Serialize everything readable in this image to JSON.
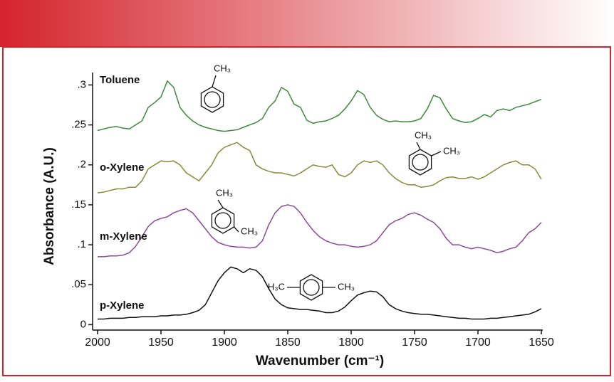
{
  "chart_data": {
    "type": "line",
    "xlabel": "Wavenumber (cm⁻¹)",
    "ylabel": "Absorbance (A.U.)",
    "x": [
      2000,
      1995,
      1990,
      1985,
      1980,
      1975,
      1970,
      1965,
      1960,
      1955,
      1950,
      1945,
      1940,
      1935,
      1930,
      1925,
      1920,
      1915,
      1910,
      1905,
      1900,
      1895,
      1890,
      1885,
      1880,
      1875,
      1870,
      1865,
      1860,
      1855,
      1850,
      1845,
      1840,
      1835,
      1830,
      1825,
      1820,
      1815,
      1810,
      1805,
      1800,
      1795,
      1790,
      1785,
      1780,
      1775,
      1770,
      1765,
      1760,
      1755,
      1750,
      1745,
      1740,
      1735,
      1730,
      1725,
      1720,
      1715,
      1710,
      1705,
      1700,
      1695,
      1690,
      1685,
      1680,
      1675,
      1670,
      1665,
      1660,
      1655,
      1650
    ],
    "series": [
      {
        "name": "Toluene",
        "color": "#3d8a3d",
        "structure": [
          "CH₃"
        ],
        "values": [
          0.243,
          0.245,
          0.247,
          0.248,
          0.246,
          0.245,
          0.25,
          0.255,
          0.272,
          0.278,
          0.285,
          0.305,
          0.297,
          0.272,
          0.262,
          0.255,
          0.25,
          0.247,
          0.245,
          0.243,
          0.242,
          0.243,
          0.244,
          0.247,
          0.25,
          0.253,
          0.258,
          0.272,
          0.28,
          0.297,
          0.292,
          0.276,
          0.272,
          0.256,
          0.252,
          0.254,
          0.255,
          0.258,
          0.262,
          0.27,
          0.28,
          0.293,
          0.288,
          0.272,
          0.262,
          0.257,
          0.254,
          0.255,
          0.254,
          0.254,
          0.255,
          0.258,
          0.27,
          0.287,
          0.284,
          0.27,
          0.258,
          0.255,
          0.253,
          0.254,
          0.258,
          0.263,
          0.26,
          0.268,
          0.27,
          0.268,
          0.272,
          0.274,
          0.276,
          0.279,
          0.282
        ]
      },
      {
        "name": "o-Xylene",
        "color": "#8a8a3a",
        "structure": [
          "CH₃",
          "CH₃"
        ],
        "values": [
          0.165,
          0.166,
          0.168,
          0.17,
          0.17,
          0.172,
          0.172,
          0.18,
          0.195,
          0.2,
          0.205,
          0.204,
          0.205,
          0.2,
          0.19,
          0.185,
          0.18,
          0.19,
          0.2,
          0.215,
          0.222,
          0.225,
          0.228,
          0.222,
          0.218,
          0.2,
          0.195,
          0.192,
          0.19,
          0.19,
          0.188,
          0.186,
          0.19,
          0.195,
          0.2,
          0.198,
          0.197,
          0.2,
          0.188,
          0.185,
          0.19,
          0.2,
          0.205,
          0.203,
          0.205,
          0.2,
          0.19,
          0.183,
          0.178,
          0.175,
          0.175,
          0.172,
          0.173,
          0.175,
          0.18,
          0.184,
          0.185,
          0.183,
          0.183,
          0.185,
          0.182,
          0.185,
          0.19,
          0.195,
          0.2,
          0.203,
          0.205,
          0.2,
          0.2,
          0.195,
          0.182
        ]
      },
      {
        "name": "m-Xylene",
        "color": "#8c4a9c",
        "structure": [
          "CH₃",
          "CH₃"
        ],
        "values": [
          0.085,
          0.085,
          0.086,
          0.086,
          0.087,
          0.09,
          0.098,
          0.11,
          0.123,
          0.13,
          0.133,
          0.135,
          0.14,
          0.143,
          0.145,
          0.14,
          0.13,
          0.12,
          0.11,
          0.103,
          0.1,
          0.098,
          0.097,
          0.097,
          0.096,
          0.097,
          0.105,
          0.125,
          0.14,
          0.148,
          0.15,
          0.148,
          0.14,
          0.128,
          0.118,
          0.11,
          0.105,
          0.102,
          0.1,
          0.1,
          0.098,
          0.097,
          0.098,
          0.1,
          0.105,
          0.115,
          0.125,
          0.13,
          0.133,
          0.138,
          0.14,
          0.137,
          0.132,
          0.128,
          0.12,
          0.108,
          0.1,
          0.1,
          0.097,
          0.095,
          0.097,
          0.095,
          0.093,
          0.09,
          0.092,
          0.095,
          0.097,
          0.105,
          0.115,
          0.12,
          0.128
        ]
      },
      {
        "name": "p-Xylene",
        "color": "#111111",
        "structure": [
          "H₃C",
          "CH₃"
        ],
        "values": [
          0.007,
          0.007,
          0.008,
          0.008,
          0.008,
          0.009,
          0.009,
          0.01,
          0.01,
          0.01,
          0.011,
          0.011,
          0.012,
          0.012,
          0.013,
          0.015,
          0.018,
          0.025,
          0.04,
          0.055,
          0.065,
          0.072,
          0.07,
          0.065,
          0.07,
          0.068,
          0.06,
          0.045,
          0.032,
          0.025,
          0.021,
          0.02,
          0.019,
          0.019,
          0.018,
          0.017,
          0.015,
          0.015,
          0.017,
          0.022,
          0.03,
          0.037,
          0.04,
          0.042,
          0.041,
          0.035,
          0.025,
          0.02,
          0.017,
          0.015,
          0.014,
          0.013,
          0.013,
          0.012,
          0.011,
          0.01,
          0.009,
          0.008,
          0.008,
          0.007,
          0.007,
          0.007,
          0.008,
          0.008,
          0.009,
          0.01,
          0.011,
          0.012,
          0.013,
          0.016,
          0.02
        ]
      }
    ],
    "xlim": [
      2000,
      1650
    ],
    "xticks": [
      2000,
      1950,
      1900,
      1850,
      1800,
      1750,
      1700,
      1650
    ],
    "ylim": [
      -0.005,
      0.32
    ],
    "yticks": [
      0,
      {
        "value": 0.05,
        "label": ".05"
      },
      {
        "value": 0.1,
        "label": ".1"
      },
      {
        "value": 0.15,
        "label": ".15"
      },
      {
        "value": 0.2,
        "label": ".2"
      },
      {
        "value": 0.25,
        "label": ".25"
      },
      {
        "value": 0.3,
        "label": ".3"
      }
    ]
  }
}
